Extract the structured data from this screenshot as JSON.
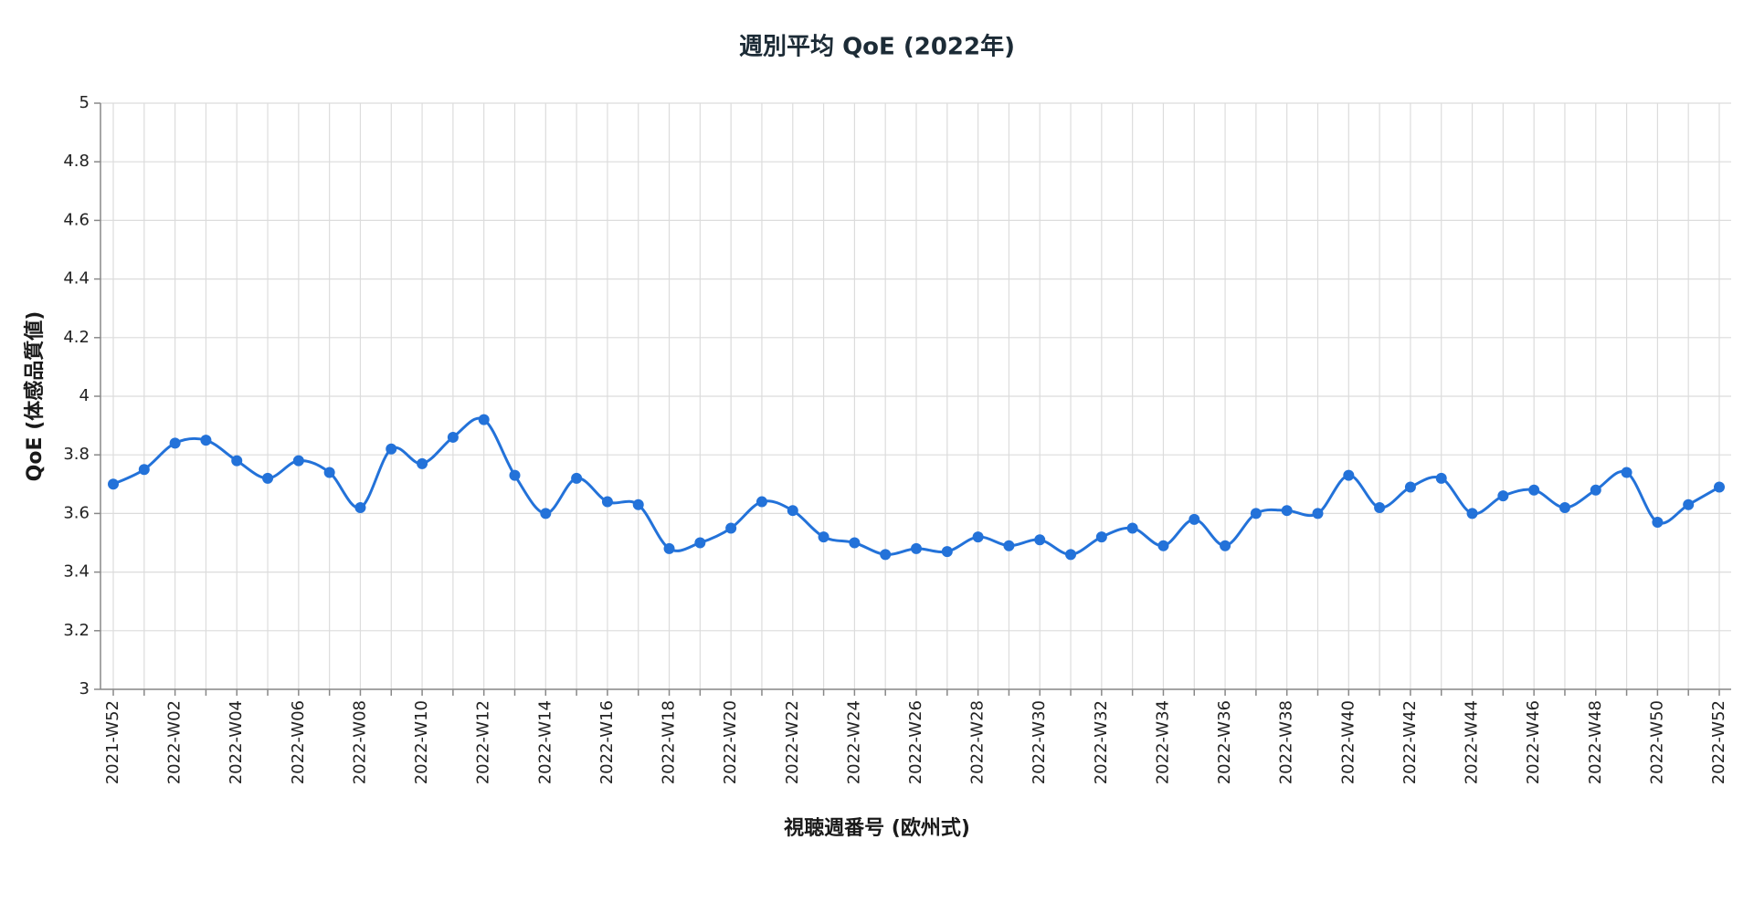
{
  "chart_data": {
    "type": "line",
    "title": "週別平均 QoE (2022年)",
    "x_label": "視聴週番号 (欧州式)",
    "y_label": "QoE (体感品質値)",
    "categories": [
      "2021-W52",
      null,
      "2022-W02",
      null,
      "2022-W04",
      null,
      "2022-W06",
      null,
      "2022-W08",
      null,
      "2022-W10",
      null,
      "2022-W12",
      null,
      "2022-W14",
      null,
      "2022-W16",
      null,
      "2022-W18",
      null,
      "2022-W20",
      null,
      "2022-W22",
      null,
      "2022-W24",
      null,
      "2022-W26",
      null,
      "2022-W28",
      null,
      "2022-W30",
      null,
      "2022-W32",
      null,
      "2022-W34",
      null,
      "2022-W36",
      null,
      "2022-W38",
      null,
      "2022-W40",
      null,
      "2022-W42",
      null,
      "2022-W44",
      null,
      "2022-W46",
      null,
      "2022-W48",
      null,
      "2022-W50",
      null,
      "2022-W52"
    ],
    "series": [
      {
        "name": "QoE",
        "color": "#2372d9",
        "values": [
          3.7,
          3.75,
          3.84,
          3.85,
          3.78,
          3.72,
          3.78,
          3.74,
          3.62,
          3.82,
          3.77,
          3.86,
          3.92,
          3.73,
          3.6,
          3.72,
          3.64,
          3.63,
          3.48,
          3.5,
          3.55,
          3.64,
          3.61,
          3.52,
          3.5,
          3.46,
          3.48,
          3.47,
          3.52,
          3.49,
          3.51,
          3.46,
          3.52,
          3.55,
          3.49,
          3.58,
          3.49,
          3.6,
          3.61,
          3.6,
          3.73,
          3.62,
          3.69,
          3.72,
          3.6,
          3.66,
          3.68,
          3.62,
          3.68,
          3.74,
          3.57,
          3.63,
          3.69
        ]
      }
    ],
    "ylim": [
      3,
      5
    ],
    "yticks": [
      3,
      3.2,
      3.4,
      3.6,
      3.8,
      4,
      4.2,
      4.4,
      4.6,
      4.8,
      5
    ],
    "grid": true
  }
}
